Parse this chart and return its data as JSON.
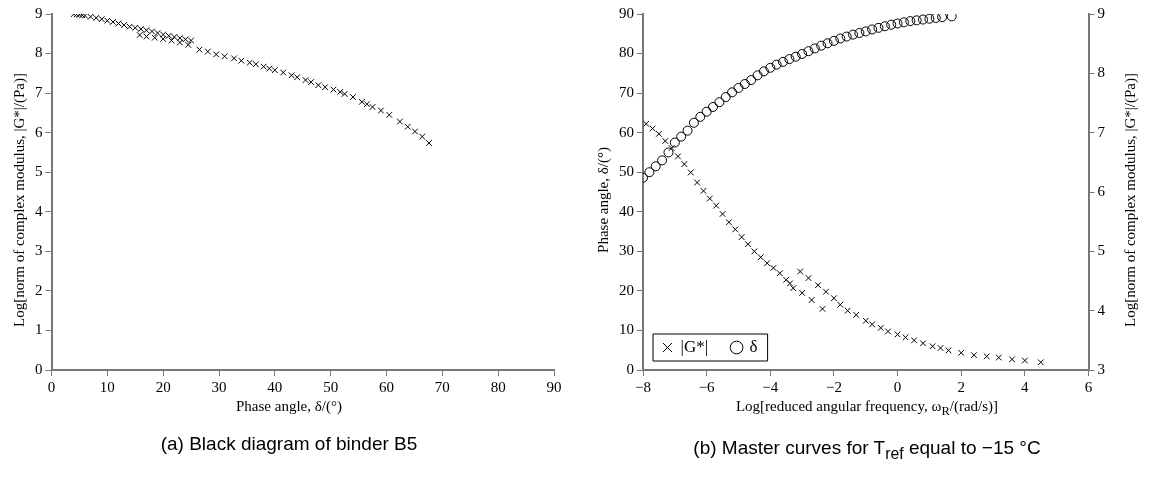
{
  "chart_data": [
    {
      "type": "scatter",
      "title": "(a) Black diagram of binder B5",
      "xlabel": "Phase angle, δ/(°)",
      "ylabel": "Log[norm of complex modulus, |G*|/(Pa)]",
      "xlim": [
        0,
        90
      ],
      "xticks": [
        0,
        10,
        20,
        30,
        40,
        50,
        60,
        70,
        80,
        90
      ],
      "ylim": [
        0,
        9
      ],
      "yticks": [
        0,
        1,
        2,
        3,
        4,
        5,
        6,
        7,
        8,
        9
      ],
      "grid": false,
      "legend": false,
      "marker": "cross",
      "series": [
        {
          "color": "#000000",
          "x": [
            4,
            4.5,
            5,
            5.5,
            6,
            7,
            8,
            9,
            10,
            11,
            12,
            13,
            14,
            15,
            16,
            17,
            18,
            19,
            20,
            21,
            22,
            23,
            24,
            25,
            15.8,
            17,
            18.5,
            20,
            21.5,
            23,
            24.5,
            26.5,
            28,
            29.5,
            31,
            32.7,
            34,
            35.5,
            36.6,
            38,
            39,
            40,
            41.5,
            43,
            44,
            45.5,
            46.5,
            47.8,
            49,
            50.5,
            51.7,
            52.5,
            54,
            55.6,
            56.5,
            57.5,
            59,
            60.5,
            62.4,
            63.8,
            65.1,
            66.4,
            67.6
          ],
          "values": [
            9.0,
            8.99,
            8.98,
            8.97,
            8.96,
            8.93,
            8.9,
            8.87,
            8.83,
            8.8,
            8.76,
            8.72,
            8.68,
            8.65,
            8.62,
            8.59,
            8.56,
            8.52,
            8.48,
            8.45,
            8.42,
            8.39,
            8.36,
            8.33,
            8.47,
            8.43,
            8.4,
            8.37,
            8.33,
            8.28,
            8.22,
            8.1,
            8.05,
            7.98,
            7.93,
            7.88,
            7.82,
            7.77,
            7.73,
            7.67,
            7.62,
            7.58,
            7.52,
            7.45,
            7.4,
            7.33,
            7.28,
            7.2,
            7.15,
            7.09,
            7.03,
            6.98,
            6.9,
            6.78,
            6.72,
            6.65,
            6.56,
            6.45,
            6.28,
            6.15,
            6.03,
            5.9,
            5.74
          ]
        }
      ]
    },
    {
      "type": "scatter",
      "title": "(b) Master curves for T$_{ref}$ equal to −15 °C",
      "xlabel": "Log[reduced angular frequency, ω$_{R}$/(rad/s)]",
      "ylabel": "Phase angle, δ/(°)",
      "y2label": "Log[norm of complex modulus, |G*|/(Pa)]",
      "xlim": [
        -8,
        6
      ],
      "xticks": [
        -8,
        -6,
        -4,
        -2,
        0,
        2,
        4,
        6
      ],
      "ylim": [
        0,
        90
      ],
      "yticks": [
        0,
        10,
        20,
        30,
        40,
        50,
        60,
        70,
        80,
        90
      ],
      "y2lim": [
        3,
        9
      ],
      "y2ticks": [
        3,
        4,
        5,
        6,
        7,
        8,
        9
      ],
      "grid": false,
      "legend": "bottom left",
      "series": [
        {
          "name": "|G*|",
          "color": "#000000",
          "axis": "y2",
          "marker": "cross",
          "x": [
            -7.9,
            -7.7,
            -7.5,
            -7.3,
            -7.1,
            -6.9,
            -6.7,
            -6.5,
            -6.3,
            -6.1,
            -5.9,
            -5.7,
            -5.5,
            -5.3,
            -5.1,
            -4.9,
            -4.7,
            -4.5,
            -4.3,
            -4.1,
            -3.9,
            -3.7,
            -3.5,
            -3.38,
            -3.28,
            -3.0,
            -2.7,
            -2.36,
            -3.06,
            -2.8,
            -2.5,
            -2.25,
            -2.0,
            -1.8,
            -1.57,
            -1.3,
            -1.0,
            -0.8,
            -0.53,
            -0.3,
            0,
            0.25,
            0.52,
            0.8,
            1.1,
            1.35,
            1.6,
            2,
            2.4,
            2.8,
            3.18,
            3.6,
            4,
            4.5
          ],
          "values": [
            7.15,
            7.07,
            6.98,
            6.86,
            6.74,
            6.6,
            6.47,
            6.33,
            6.16,
            6.02,
            5.89,
            5.77,
            5.63,
            5.49,
            5.37,
            5.24,
            5.12,
            5.0,
            4.9,
            4.8,
            4.72,
            4.63,
            4.52,
            4.46,
            4.38,
            4.3,
            4.18,
            4.03,
            4.66,
            4.55,
            4.43,
            4.32,
            4.21,
            4.1,
            4.0,
            3.93,
            3.83,
            3.77,
            3.71,
            3.65,
            3.6,
            3.55,
            3.5,
            3.45,
            3.4,
            3.37,
            3.33,
            3.29,
            3.25,
            3.23,
            3.21,
            3.18,
            3.16,
            3.13
          ]
        },
        {
          "name": "δ",
          "color": "#000000",
          "marker": "circle",
          "x": [
            -8,
            -7.8,
            -7.6,
            -7.4,
            -7.2,
            -7,
            -6.8,
            -6.6,
            -6.4,
            -6.2,
            -6,
            -5.8,
            -5.6,
            -5.4,
            -5.2,
            -5,
            -4.8,
            -4.6,
            -4.4,
            -4.2,
            -4,
            -3.8,
            -3.6,
            -3.4,
            -3.2,
            -3,
            -2.8,
            -2.6,
            -2.4,
            -2.2,
            -2,
            -1.8,
            -1.6,
            -1.4,
            -1.2,
            -1,
            -0.8,
            -0.6,
            -0.4,
            -0.2,
            0,
            0.2,
            0.4,
            0.6,
            0.8,
            1,
            1.2,
            1.4,
            1.7
          ],
          "values": [
            48.6,
            50,
            51.5,
            53,
            55,
            57.5,
            59,
            60.5,
            62.5,
            64,
            65.3,
            66.5,
            67.7,
            69,
            70.2,
            71.3,
            72.3,
            73.3,
            74.5,
            75.5,
            76.4,
            77.2,
            77.9,
            78.6,
            79.2,
            79.9,
            80.6,
            81.3,
            82,
            82.6,
            83.2,
            83.8,
            84.3,
            84.8,
            85.2,
            85.6,
            86.1,
            86.5,
            86.9,
            87.3,
            87.6,
            87.9,
            88.2,
            88.4,
            88.6,
            88.8,
            89,
            89.2,
            89.4
          ]
        }
      ]
    }
  ]
}
